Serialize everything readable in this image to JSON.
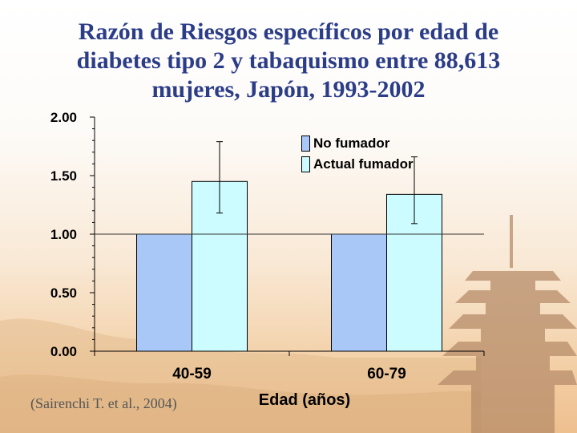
{
  "slide": {
    "title_lines": [
      "Razón de Riesgos específicos por edad de",
      "diabetes tipo 2 y tabaquismo entre 88,613",
      "mujeres, Japón, 1993-2002"
    ],
    "source": "(Sairenchi T. et al., 2004)"
  },
  "chart_data": {
    "type": "bar",
    "title": "Razón de Riesgos específicos por edad de diabetes tipo 2 y tabaquismo entre 88,613 mujeres, Japón, 1993-2002",
    "xlabel": "Edad (años)",
    "ylabel": "",
    "categories": [
      "40-59",
      "60-79"
    ],
    "series": [
      {
        "name": "No fumador",
        "values": [
          1.0,
          1.0
        ],
        "color": "#a9c8f7"
      },
      {
        "name": "Actual fumador",
        "values": [
          1.45,
          1.34
        ],
        "error_low": [
          1.18,
          1.09
        ],
        "error_high": [
          1.79,
          1.66
        ],
        "color": "#ccfcff"
      }
    ],
    "ylim": [
      0,
      2
    ],
    "yticks": [
      "0.00",
      "0.50",
      "1.00",
      "1.50",
      "2.00"
    ],
    "reference_line": 1.0,
    "grid": false,
    "legend_position": "top-right"
  }
}
